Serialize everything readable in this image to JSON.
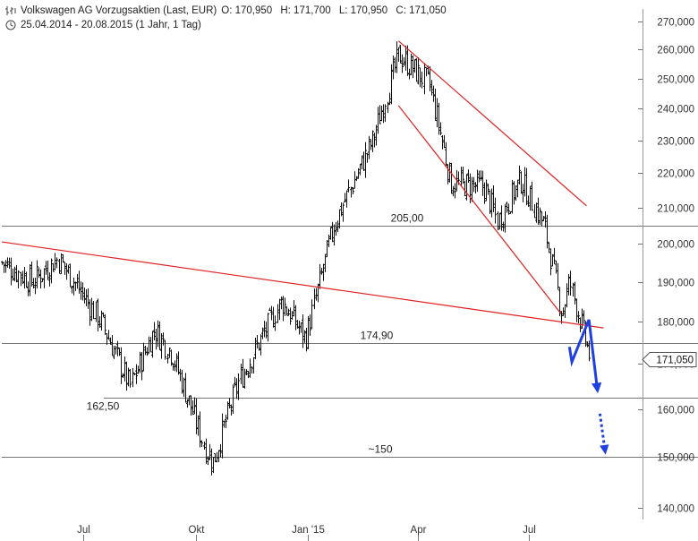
{
  "header": {
    "title": "Volkswagen AG Vorzugsaktien (Last, EUR)",
    "open": "O: 170,950",
    "high": "H: 171,700",
    "low": "L: 170,950",
    "close": "C: 171,050",
    "range": "25.04.2014 - 20.08.2015 (1 Jahr, 1 Tag)",
    "chart_icon": "candlestick-icon",
    "clock_icon": "clock-icon"
  },
  "chart_data": {
    "type": "bar",
    "title": "Volkswagen AG Vorzugsaktien (Last, EUR)",
    "y_axis": {
      "position": "right",
      "ticks": [
        140000,
        150000,
        160000,
        170000,
        180000,
        190000,
        200000,
        210000,
        220000,
        230000,
        240000,
        250000,
        260000,
        270000
      ],
      "tick_labels": [
        "140,000",
        "150,000",
        "160,000",
        "170,000",
        "180,000",
        "190,000",
        "200,000",
        "210,000",
        "220,000",
        "230,000",
        "240,000",
        "250,000",
        "260,000",
        "270,000"
      ],
      "log_scale": true
    },
    "x_axis": {
      "tick_labels": [
        "Jul",
        "Okt",
        "Jan '15",
        "Apr",
        "Jul"
      ],
      "tick_dates": [
        "2014-07-01",
        "2014-10-01",
        "2015-01-01",
        "2015-04-01",
        "2015-07-01"
      ]
    },
    "last_price": 171.05,
    "last_price_label": "171,050",
    "horizontal_levels": [
      {
        "value": 205.0,
        "label": "205,00"
      },
      {
        "value": 174.9,
        "label": "174,90"
      },
      {
        "value": 162.5,
        "label": "162,50"
      },
      {
        "value": 150.0,
        "label": "~150"
      }
    ],
    "trendlines": [
      {
        "from": [
          "2014-04-25",
          200.5
        ],
        "to": [
          "2015-08-31",
          178.5
        ],
        "color": "#e02020"
      },
      {
        "from": [
          "2015-03-16",
          263.0
        ],
        "to": [
          "2015-08-17",
          210.5
        ],
        "color": "#e02020"
      },
      {
        "from": [
          "2015-03-16",
          241.0
        ],
        "to": [
          "2015-07-27",
          182.0
        ],
        "color": "#e02020"
      }
    ],
    "forecast_path": {
      "color": "#1f3fe0",
      "points": [
        [
          "2015-08-03",
          174.0
        ],
        [
          "2015-08-05",
          170.5
        ],
        [
          "2015-08-19",
          180.5
        ],
        [
          "2015-08-26",
          164.0
        ]
      ],
      "dotted_from": [
        "2015-08-28",
        159.0
      ],
      "dotted_to": [
        "2015-09-01",
        151.5
      ]
    },
    "key_prices": [
      {
        "date": "2014-04-25",
        "close": 195.0
      },
      {
        "date": "2014-05-20",
        "close": 190.0
      },
      {
        "date": "2014-06-10",
        "close": 196.0
      },
      {
        "date": "2014-07-15",
        "close": 180.0
      },
      {
        "date": "2014-08-08",
        "close": 165.0
      },
      {
        "date": "2014-08-28",
        "close": 178.0
      },
      {
        "date": "2014-09-10",
        "close": 173.0
      },
      {
        "date": "2014-10-08",
        "close": 152.0
      },
      {
        "date": "2014-10-15",
        "close": 149.0
      },
      {
        "date": "2014-11-05",
        "close": 166.0
      },
      {
        "date": "2014-12-10",
        "close": 185.0
      },
      {
        "date": "2014-12-30",
        "close": 176.0
      },
      {
        "date": "2015-01-22",
        "close": 205.0
      },
      {
        "date": "2015-02-23",
        "close": 230.0
      },
      {
        "date": "2015-03-16",
        "close": 258.0
      },
      {
        "date": "2015-04-10",
        "close": 248.0
      },
      {
        "date": "2015-04-28",
        "close": 217.0
      },
      {
        "date": "2015-05-25",
        "close": 216.0
      },
      {
        "date": "2015-06-05",
        "close": 206.0
      },
      {
        "date": "2015-06-24",
        "close": 218.0
      },
      {
        "date": "2015-07-13",
        "close": 205.0
      },
      {
        "date": "2015-07-28",
        "close": 182.0
      },
      {
        "date": "2015-08-03",
        "close": 190.0
      },
      {
        "date": "2015-08-20",
        "close": 171.05
      }
    ]
  }
}
